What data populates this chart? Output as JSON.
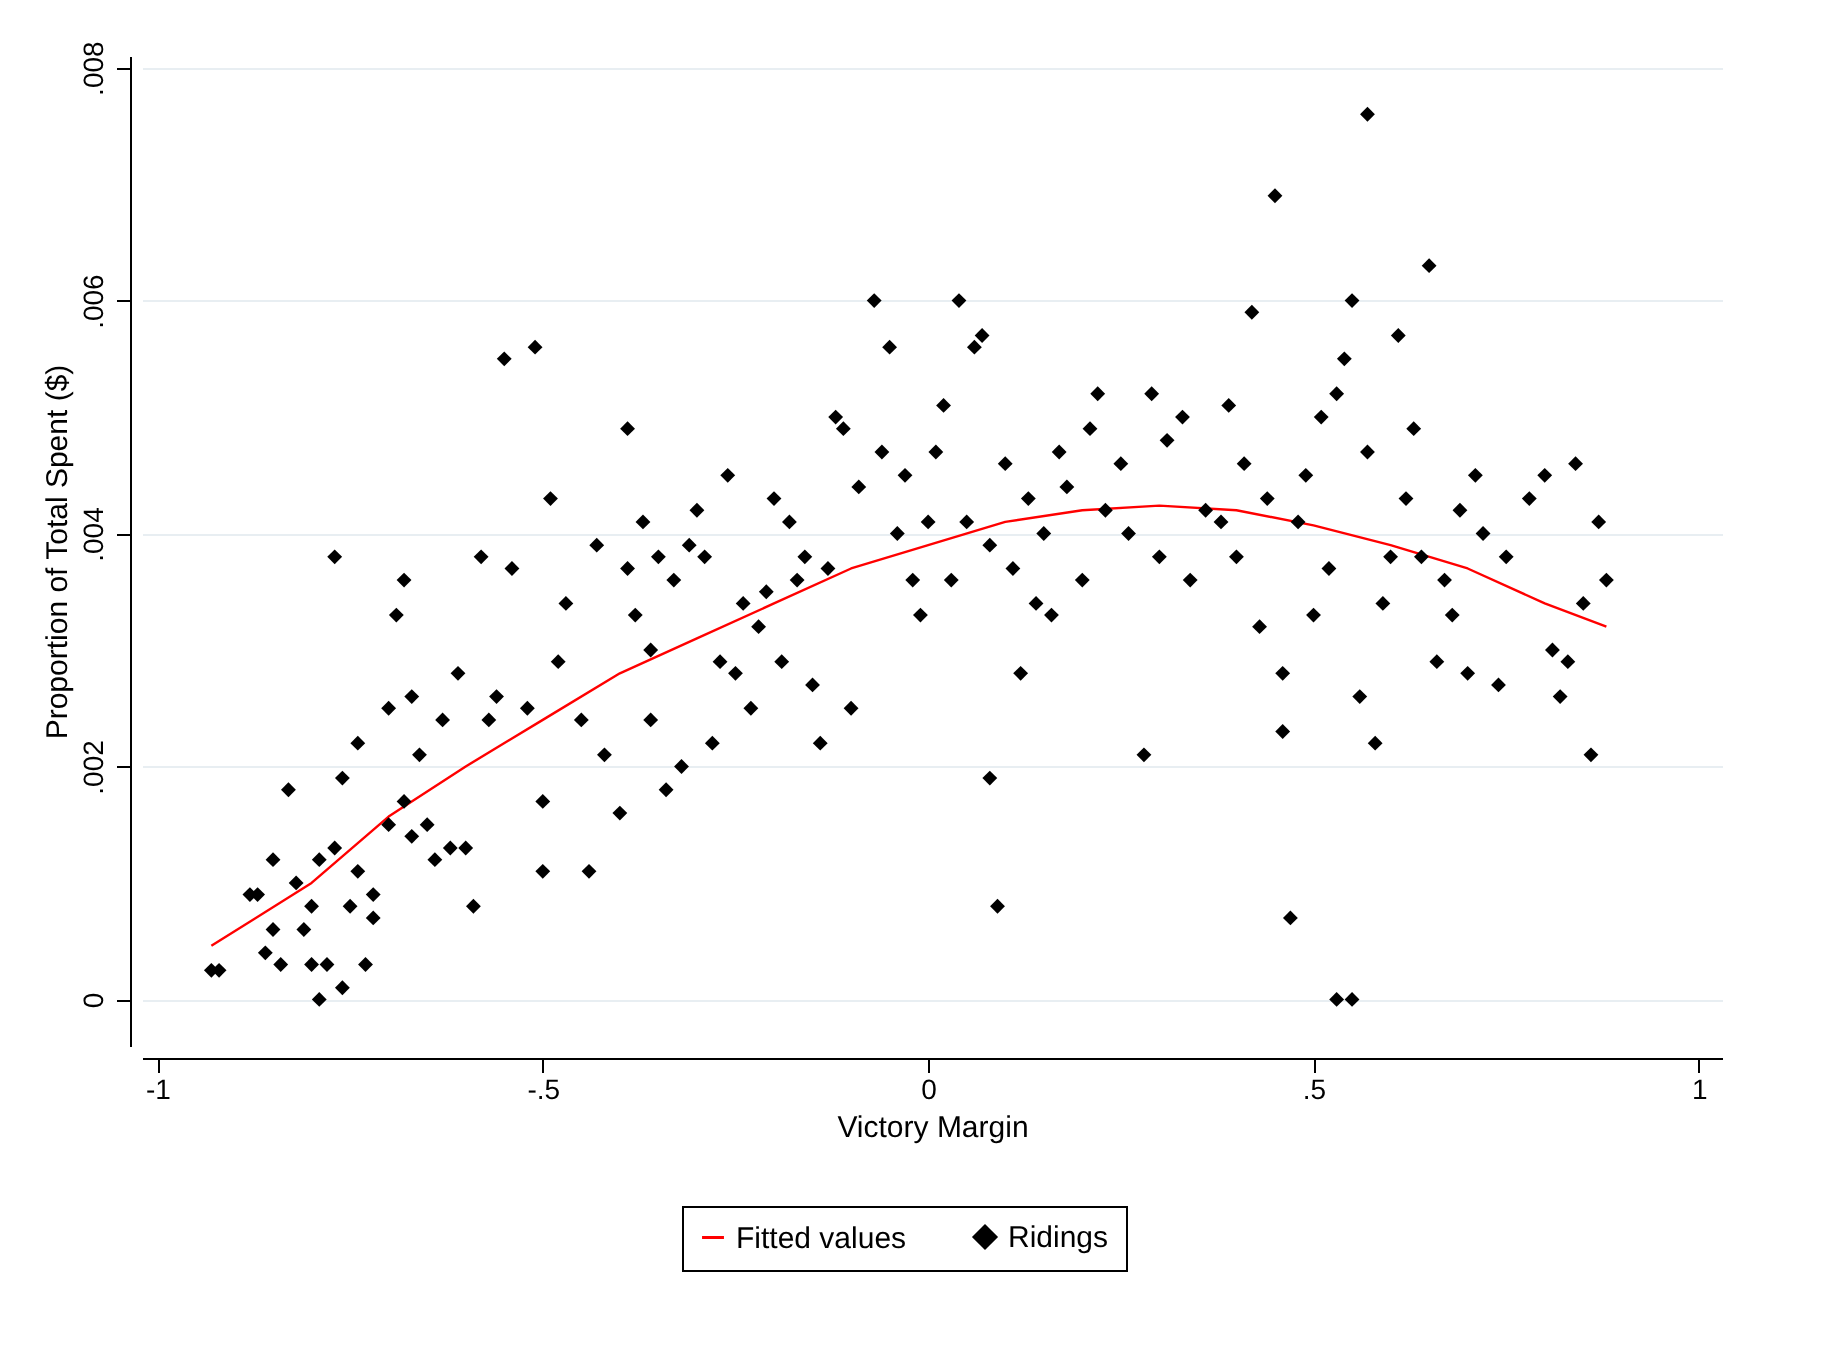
{
  "chart_data": {
    "type": "scatter",
    "xlabel": "Victory Margin",
    "ylabel": "Proportion of Total Spent ($)",
    "xlim": [
      -1.02,
      1.03
    ],
    "xticks": [
      {
        "value": -1,
        "label": "-1"
      },
      {
        "value": -0.5,
        "label": "-.5"
      },
      {
        "value": 0,
        "label": "0"
      },
      {
        "value": 0.5,
        "label": ".5"
      },
      {
        "value": 1,
        "label": "1"
      }
    ],
    "ylim": [
      -0.0004,
      0.0081
    ],
    "yticks": [
      {
        "value": 0,
        "label": "0"
      },
      {
        "value": 0.002,
        "label": ".002"
      },
      {
        "value": 0.004,
        "label": ".004"
      },
      {
        "value": 0.006,
        "label": ".006"
      },
      {
        "value": 0.008,
        "label": ".008"
      }
    ],
    "grid": "y",
    "legend": "bottom",
    "line_style": "solid",
    "series": [
      {
        "name": "Fitted values",
        "type": "line",
        "color": "#ff0000",
        "x": [
          -0.93,
          -0.8,
          -0.7,
          -0.6,
          -0.5,
          -0.4,
          -0.3,
          -0.2,
          -0.1,
          0,
          0.1,
          0.2,
          0.3,
          0.4,
          0.5,
          0.6,
          0.7,
          0.8,
          0.88
        ],
        "values": [
          0.00046,
          0.001,
          0.00157,
          0.002,
          0.0024,
          0.0028,
          0.0031,
          0.0034,
          0.0037,
          0.0039,
          0.0041,
          0.0042,
          0.00424,
          0.0042,
          0.00407,
          0.0039,
          0.0037,
          0.0034,
          0.0032
        ]
      },
      {
        "name": "Ridings",
        "marker": "diamond",
        "color": "#000000",
        "x": [
          -0.93,
          -0.92,
          -0.88,
          -0.87,
          -0.86,
          -0.85,
          -0.85,
          -0.84,
          -0.83,
          -0.82,
          -0.81,
          -0.8,
          -0.8,
          -0.79,
          -0.79,
          -0.78,
          -0.77,
          -0.77,
          -0.76,
          -0.76,
          -0.75,
          -0.74,
          -0.74,
          -0.73,
          -0.72,
          -0.72,
          -0.7,
          -0.7,
          -0.69,
          -0.68,
          -0.68,
          -0.67,
          -0.67,
          -0.66,
          -0.65,
          -0.64,
          -0.63,
          -0.62,
          -0.61,
          -0.6,
          -0.59,
          -0.58,
          -0.57,
          -0.56,
          -0.55,
          -0.54,
          -0.52,
          -0.51,
          -0.5,
          -0.5,
          -0.49,
          -0.48,
          -0.47,
          -0.45,
          -0.44,
          -0.43,
          -0.42,
          -0.4,
          -0.39,
          -0.39,
          -0.38,
          -0.37,
          -0.36,
          -0.36,
          -0.35,
          -0.34,
          -0.33,
          -0.32,
          -0.31,
          -0.3,
          -0.29,
          -0.28,
          -0.27,
          -0.26,
          -0.25,
          -0.24,
          -0.23,
          -0.22,
          -0.21,
          -0.2,
          -0.19,
          -0.18,
          -0.17,
          -0.16,
          -0.15,
          -0.14,
          -0.13,
          -0.12,
          -0.11,
          -0.1,
          -0.09,
          -0.07,
          -0.06,
          -0.05,
          -0.04,
          -0.03,
          -0.02,
          -0.01,
          0,
          0.01,
          0.02,
          0.03,
          0.04,
          0.05,
          0.06,
          0.07,
          0.08,
          0.08,
          0.09,
          0.1,
          0.11,
          0.12,
          0.13,
          0.14,
          0.15,
          0.16,
          0.17,
          0.18,
          0.2,
          0.21,
          0.22,
          0.23,
          0.25,
          0.26,
          0.28,
          0.29,
          0.3,
          0.31,
          0.33,
          0.34,
          0.36,
          0.38,
          0.39,
          0.4,
          0.41,
          0.42,
          0.43,
          0.44,
          0.45,
          0.46,
          0.46,
          0.47,
          0.48,
          0.49,
          0.5,
          0.51,
          0.52,
          0.53,
          0.53,
          0.55,
          0.54,
          0.55,
          0.56,
          0.57,
          0.57,
          0.58,
          0.59,
          0.6,
          0.61,
          0.62,
          0.63,
          0.64,
          0.65,
          0.66,
          0.67,
          0.68,
          0.69,
          0.7,
          0.71,
          0.72,
          0.74,
          0.75,
          0.78,
          0.8,
          0.81,
          0.82,
          0.83,
          0.84,
          0.85,
          0.86,
          0.87,
          0.88
        ],
        "values": [
          0.00025,
          0.00025,
          0.0009,
          0.0009,
          0.0004,
          0.0012,
          0.0006,
          0.0003,
          0.0018,
          0.001,
          0.0006,
          0.0003,
          0.0008,
          0,
          0.0012,
          0.0003,
          0.0013,
          0.0038,
          0.0019,
          0.0001,
          0.0008,
          0.0011,
          0.0022,
          0.0003,
          0.0007,
          0.0009,
          0.0015,
          0.0025,
          0.0033,
          0.0036,
          0.0017,
          0.0026,
          0.0014,
          0.0021,
          0.0015,
          0.0012,
          0.0024,
          0.0013,
          0.0028,
          0.0013,
          0.0008,
          0.0038,
          0.0024,
          0.0026,
          0.0055,
          0.0037,
          0.0025,
          0.0056,
          0.0017,
          0.0011,
          0.0043,
          0.0029,
          0.0034,
          0.0024,
          0.0011,
          0.0039,
          0.0021,
          0.0016,
          0.0049,
          0.0037,
          0.0033,
          0.0041,
          0.003,
          0.0024,
          0.0038,
          0.0018,
          0.0036,
          0.002,
          0.0039,
          0.0042,
          0.0038,
          0.0022,
          0.0029,
          0.0045,
          0.0028,
          0.0034,
          0.0025,
          0.0032,
          0.0035,
          0.0043,
          0.0029,
          0.0041,
          0.0036,
          0.0038,
          0.0027,
          0.0022,
          0.0037,
          0.005,
          0.0049,
          0.0025,
          0.0044,
          0.006,
          0.0047,
          0.0056,
          0.004,
          0.0045,
          0.0036,
          0.0033,
          0.0041,
          0.0047,
          0.0051,
          0.0036,
          0.006,
          0.0041,
          0.0056,
          0.0057,
          0.0039,
          0.0019,
          0.0008,
          0.0046,
          0.0037,
          0.0028,
          0.0043,
          0.0034,
          0.004,
          0.0033,
          0.0047,
          0.0044,
          0.0036,
          0.0049,
          0.0052,
          0.0042,
          0.0046,
          0.004,
          0.0021,
          0.0052,
          0.0038,
          0.0048,
          0.005,
          0.0036,
          0.0042,
          0.0041,
          0.0051,
          0.0038,
          0.0046,
          0.0059,
          0.0032,
          0.0043,
          0.0069,
          0.0023,
          0.0028,
          0.0007,
          0.0041,
          0.0045,
          0.0033,
          0.005,
          0.0037,
          0.0052,
          0,
          0,
          0.0055,
          0.006,
          0.0026,
          0.0076,
          0.0047,
          0.0022,
          0.0034,
          0.0038,
          0.0057,
          0.0043,
          0.0049,
          0.0038,
          0.0063,
          0.0029,
          0.0036,
          0.0033,
          0.0042,
          0.0028,
          0.0045,
          0.004,
          0.0027,
          0.0038,
          0.0043,
          0.0045,
          0.003,
          0.0026,
          0.0029,
          0.0046,
          0.0034,
          0.0021,
          0.0041,
          0.0036
        ]
      }
    ]
  }
}
